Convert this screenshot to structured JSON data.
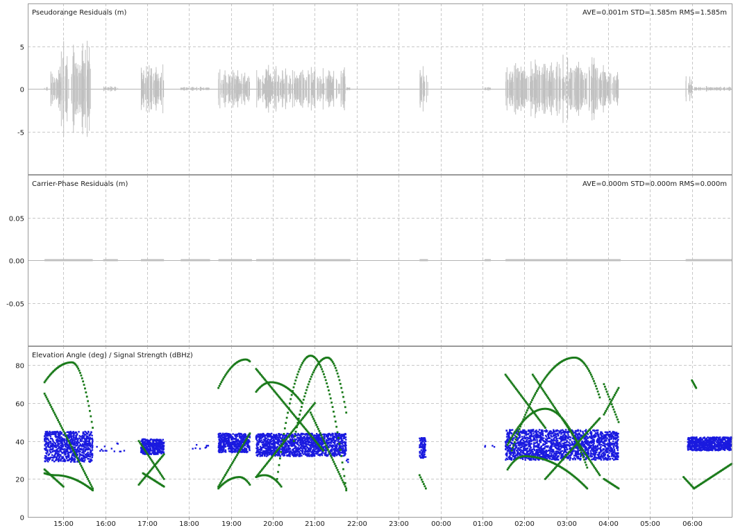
{
  "colors": {
    "background": "#ffffff",
    "frame": "#9a9a9a",
    "grid": "#c8c8c8",
    "zero_line": "#b4b4b4",
    "residual_points": "#c0c0c0",
    "elevation_points": "#1a7a1a",
    "signal_points": "#1a1adf",
    "text": "#1a1a1a"
  },
  "x_axis": {
    "ticks": [
      "15:00",
      "16:00",
      "17:00",
      "18:00",
      "19:00",
      "20:00",
      "21:00",
      "22:00",
      "23:00",
      "00:00",
      "01:00",
      "02:00",
      "03:00",
      "04:00",
      "05:00",
      "06:00"
    ],
    "tick_hours": [
      15,
      16,
      17,
      18,
      19,
      20,
      21,
      22,
      23,
      24,
      25,
      26,
      27,
      28,
      29,
      30
    ],
    "range_hours": [
      14.15,
      30.95
    ]
  },
  "chart_data": [
    {
      "type": "scatter",
      "title": "Pseudorange Residuals (m)",
      "stats": "AVE=0.001m STD=1.585m RMS=1.585m",
      "ylim": [
        -10,
        10
      ],
      "yticks": [
        5,
        0,
        -5
      ],
      "ytick_labels": [
        "5",
        "0",
        "-5"
      ],
      "grid": true,
      "color": "#c0c0c0",
      "bursts": [
        {
          "start": 14.55,
          "end": 14.62,
          "amp": 0.6
        },
        {
          "start": 14.68,
          "end": 14.95,
          "amp": 3.5
        },
        {
          "start": 14.95,
          "end": 15.65,
          "amp": 7.0
        },
        {
          "start": 15.95,
          "end": 16.3,
          "amp": 0.4
        },
        {
          "start": 16.85,
          "end": 17.4,
          "amp": 3.8
        },
        {
          "start": 17.8,
          "end": 18.5,
          "amp": 0.3
        },
        {
          "start": 18.7,
          "end": 19.45,
          "amp": 3.0
        },
        {
          "start": 19.6,
          "end": 21.75,
          "amp": 3.5
        },
        {
          "start": 21.7,
          "end": 21.85,
          "amp": 0.5
        },
        {
          "start": 23.5,
          "end": 23.7,
          "amp": 4.0
        },
        {
          "start": 25.05,
          "end": 25.2,
          "amp": 0.4
        },
        {
          "start": 25.55,
          "end": 27.8,
          "amp": 4.8
        },
        {
          "start": 27.8,
          "end": 28.25,
          "amp": 3.5
        },
        {
          "start": 29.85,
          "end": 30.0,
          "amp": 2.2
        },
        {
          "start": 30.0,
          "end": 30.95,
          "amp": 0.4
        }
      ]
    },
    {
      "type": "scatter",
      "title": "Carrier-Phase Residuals (m)",
      "stats": "AVE=0.000m STD=0.000m RMS=0.000m",
      "ylim": [
        -0.1,
        0.1
      ],
      "yticks": [
        0.05,
        0.0,
        -0.05
      ],
      "ytick_labels": [
        "0.05",
        "0.00",
        "-0.05"
      ],
      "grid": true,
      "color": "#c0c0c0",
      "segments": [
        [
          14.55,
          15.7
        ],
        [
          15.95,
          16.3
        ],
        [
          16.85,
          17.4
        ],
        [
          17.8,
          18.5
        ],
        [
          18.7,
          19.5
        ],
        [
          19.6,
          21.85
        ],
        [
          23.5,
          23.7
        ],
        [
          25.05,
          25.2
        ],
        [
          25.55,
          28.3
        ],
        [
          29.85,
          30.95
        ]
      ]
    },
    {
      "type": "scatter",
      "title": "Elevation Angle (deg) / Signal Strength (dBHz)",
      "ylim": [
        0,
        90
      ],
      "yticks": [
        80,
        60,
        40,
        20,
        0
      ],
      "ytick_labels": [
        "80",
        "60",
        "40",
        "20",
        "0"
      ],
      "grid": true,
      "series": [
        {
          "color": "#1a7a1a",
          "arcs": [
            {
              "start": 14.55,
              "end": 15.7,
              "kind": "rise_set",
              "y0": 71,
              "peak": 81.5,
              "peak_x": 15.2,
              "y1": 47
            },
            {
              "start": 14.55,
              "end": 15.7,
              "kind": "linear",
              "y0": 65,
              "y1": 15
            },
            {
              "start": 14.55,
              "end": 15.7,
              "kind": "rise_set",
              "y0": 23,
              "peak": 22,
              "peak_x": 14.8,
              "y1": 14
            },
            {
              "start": 14.55,
              "end": 15.0,
              "kind": "linear",
              "y0": 25,
              "y1": 16
            },
            {
              "start": 16.8,
              "end": 17.4,
              "kind": "linear",
              "y0": 40,
              "y1": 20
            },
            {
              "start": 16.8,
              "end": 17.4,
              "kind": "linear",
              "y0": 17,
              "y1": 33
            },
            {
              "start": 16.9,
              "end": 17.4,
              "kind": "linear",
              "y0": 23,
              "y1": 16
            },
            {
              "start": 18.7,
              "end": 19.45,
              "kind": "rise_set",
              "y0": 68,
              "peak": 83,
              "peak_x": 19.35,
              "y1": 82
            },
            {
              "start": 18.7,
              "end": 19.45,
              "kind": "linear",
              "y0": 16,
              "y1": 44
            },
            {
              "start": 18.7,
              "end": 19.45,
              "kind": "rise_set",
              "y0": 15,
              "peak": 21,
              "peak_x": 19.2,
              "y1": 17
            },
            {
              "start": 19.6,
              "end": 20.7,
              "kind": "rise_set",
              "y0": 66,
              "peak": 71,
              "peak_x": 19.95,
              "y1": 60
            },
            {
              "start": 19.6,
              "end": 21.2,
              "kind": "linear",
              "y0": 78,
              "y1": 35
            },
            {
              "start": 19.6,
              "end": 21.0,
              "kind": "linear",
              "y0": 21,
              "y1": 60
            },
            {
              "start": 20.1,
              "end": 21.75,
              "kind": "rise_set",
              "y0": 20,
              "peak": 85,
              "peak_x": 20.9,
              "y1": 14
            },
            {
              "start": 20.5,
              "end": 21.75,
              "kind": "rise_set",
              "y0": 40,
              "peak": 84,
              "peak_x": 21.3,
              "y1": 55
            },
            {
              "start": 20.9,
              "end": 21.75,
              "kind": "linear",
              "y0": 55,
              "y1": 15
            },
            {
              "start": 19.6,
              "end": 20.2,
              "kind": "rise_set",
              "y0": 21,
              "peak": 22,
              "peak_x": 19.8,
              "y1": 16
            },
            {
              "start": 23.5,
              "end": 23.65,
              "kind": "linear",
              "y0": 22,
              "y1": 15
            },
            {
              "start": 25.55,
              "end": 26.5,
              "kind": "linear",
              "y0": 75,
              "y1": 47
            },
            {
              "start": 25.6,
              "end": 27.5,
              "kind": "rise_set",
              "y0": 25,
              "peak": 32,
              "peak_x": 26.0,
              "y1": 15
            },
            {
              "start": 25.6,
              "end": 27.5,
              "kind": "rise_set",
              "y0": 38,
              "peak": 57,
              "peak_x": 26.5,
              "y1": 26
            },
            {
              "start": 25.7,
              "end": 27.8,
              "kind": "rise_set",
              "y0": 35,
              "peak": 84,
              "peak_x": 27.2,
              "y1": 63
            },
            {
              "start": 26.2,
              "end": 27.8,
              "kind": "linear",
              "y0": 75,
              "y1": 22
            },
            {
              "start": 26.5,
              "end": 27.8,
              "kind": "linear",
              "y0": 20,
              "y1": 52
            },
            {
              "start": 27.9,
              "end": 28.25,
              "kind": "linear",
              "y0": 70,
              "y1": 50
            },
            {
              "start": 27.9,
              "end": 28.25,
              "kind": "linear",
              "y0": 54,
              "y1": 68
            },
            {
              "start": 27.9,
              "end": 28.25,
              "kind": "linear",
              "y0": 20,
              "y1": 15
            },
            {
              "start": 29.8,
              "end": 30.05,
              "kind": "linear",
              "y0": 21,
              "y1": 15
            },
            {
              "start": 30.05,
              "end": 30.95,
              "kind": "linear",
              "y0": 15,
              "y1": 28
            },
            {
              "start": 30.0,
              "end": 30.1,
              "kind": "linear",
              "y0": 72,
              "y1": 68
            }
          ]
        },
        {
          "color": "#1a1adf",
          "bands": [
            {
              "start": 14.55,
              "end": 15.7,
              "low": 29,
              "high": 45
            },
            {
              "start": 16.85,
              "end": 17.4,
              "low": 33,
              "high": 41
            },
            {
              "start": 18.7,
              "end": 19.45,
              "low": 34,
              "high": 44
            },
            {
              "start": 19.6,
              "end": 21.75,
              "low": 32,
              "high": 44
            },
            {
              "start": 23.5,
              "end": 23.65,
              "low": 31,
              "high": 42
            },
            {
              "start": 25.55,
              "end": 27.8,
              "low": 30,
              "high": 46
            },
            {
              "start": 27.8,
              "end": 28.25,
              "low": 30,
              "high": 45
            },
            {
              "start": 29.9,
              "end": 30.95,
              "low": 35,
              "high": 42
            }
          ],
          "sparse": [
            {
              "start": 15.8,
              "end": 16.7,
              "low": 34,
              "high": 39
            },
            {
              "start": 18.0,
              "end": 18.5,
              "low": 35,
              "high": 38
            },
            {
              "start": 21.75,
              "end": 21.9,
              "low": 27,
              "high": 31
            },
            {
              "start": 25.05,
              "end": 25.3,
              "low": 34,
              "high": 38
            }
          ]
        }
      ]
    }
  ]
}
